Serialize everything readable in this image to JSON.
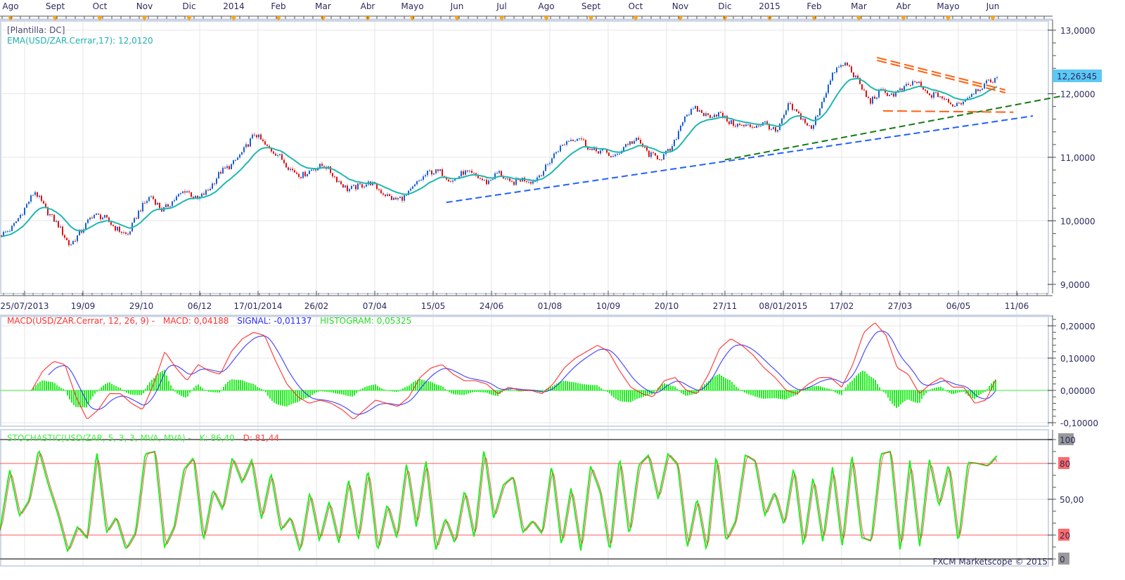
{
  "app": {
    "template_label": "[Plantilla: DC]",
    "footer": "FXCM Marketscope © 2015"
  },
  "top_axis": {
    "months": [
      "Ago",
      "Sept",
      "Oct",
      "Nov",
      "Dic",
      "2014",
      "Feb",
      "Mar",
      "Abr",
      "Mayo",
      "Jun",
      "Jul",
      "Ago",
      "Sept",
      "Oct",
      "Nov",
      "Dic",
      "2015",
      "Feb",
      "Mar",
      "Abr",
      "Mayo",
      "Jun"
    ]
  },
  "colors": {
    "up_candle": "#1a5fd0",
    "down_candle": "#e01010",
    "ema": "#20b8b0",
    "macd": "#ff2020",
    "signal": "#2020ff",
    "histogram": "#22ee22",
    "stoch_k": "#22ee22",
    "stoch_d": "#ff3030",
    "last_price_badge": "#5cc8f5",
    "trend_blue": "#2060ff",
    "trend_green": "#137a13",
    "trend_orange": "#ff6010"
  },
  "chart_data": [
    {
      "type": "candlestick",
      "symbol": "USD/ZAR",
      "indicator_label": "EMA(USD/ZAR.Cerrar,17):  12,0120",
      "last_price_label": "12,26345",
      "x_tick_labels": [
        "25/07/2013",
        "19/09",
        "29/10",
        "06/12",
        "17/01/2014",
        "26/02",
        "07/04",
        "15/05",
        "24/06",
        "01/08",
        "10/09",
        "20/10",
        "27/11",
        "08/01/2015",
        "17/02",
        "27/03",
        "06/05",
        "11/06"
      ],
      "y_tick_labels": [
        "13,0000",
        "12,0000",
        "11,0000",
        "10,0000",
        "9,0000"
      ],
      "ylim": [
        9.0,
        13.0
      ],
      "grid": true,
      "close_path": [
        9.77,
        9.88,
        10.16,
        10.47,
        10.16,
        9.94,
        9.61,
        9.83,
        10.1,
        10.05,
        9.88,
        9.77,
        10.16,
        10.4,
        10.16,
        10.33,
        10.49,
        10.33,
        10.49,
        10.77,
        10.88,
        11.1,
        11.38,
        11.16,
        11.04,
        10.82,
        10.71,
        10.82,
        10.88,
        10.66,
        10.49,
        10.55,
        10.6,
        10.44,
        10.33,
        10.38,
        10.6,
        10.77,
        10.77,
        10.62,
        10.77,
        10.71,
        10.6,
        10.77,
        10.58,
        10.66,
        10.62,
        10.82,
        11.1,
        11.27,
        11.32,
        11.1,
        11.1,
        10.99,
        11.21,
        11.27,
        11.04,
        10.99,
        11.15,
        11.65,
        11.76,
        11.65,
        11.69,
        11.54,
        11.49,
        11.49,
        11.54,
        11.38,
        11.82,
        11.65,
        11.43,
        11.93,
        12.37,
        12.48,
        12.2,
        11.87,
        12.04,
        11.98,
        12.09,
        12.2,
        11.98,
        11.98,
        11.82,
        11.87,
        12.04,
        12.15,
        12.26
      ],
      "ema_last": 12.012,
      "trendlines": [
        {
          "color": "blue",
          "style": "dashed",
          "from": [
            "2014-05-24",
            10.29
          ],
          "to": [
            "2015-06-21",
            11.65
          ]
        },
        {
          "color": "green",
          "style": "dashed",
          "from": [
            "2014-11-27",
            10.96
          ],
          "to": [
            "2015-07-08",
            11.96
          ]
        },
        {
          "color": "orange",
          "style": "double-dashed",
          "from": [
            "2015-03-12",
            12.57
          ],
          "to": [
            "2015-06-04",
            12.06
          ]
        },
        {
          "color": "orange",
          "style": "dashed",
          "from": [
            "2015-03-16",
            11.73
          ],
          "to": [
            "2015-06-09",
            11.71
          ]
        }
      ]
    },
    {
      "type": "line",
      "title": "MACD(USD/ZAR.Cerrar, 12, 26, 9) -",
      "macd_label": "MACD: 0,04188",
      "signal_label": "SIGNAL: -0,01137",
      "histogram_label": "HISTOGRAM: 0,05325",
      "y_tick_labels": [
        "0,20000",
        "0,10000",
        "0,00000",
        "-0,10000"
      ],
      "ylim": [
        -0.11,
        0.23
      ],
      "macd": [
        0.0,
        0.06,
        0.09,
        0.08,
        -0.02,
        -0.09,
        -0.06,
        -0.01,
        -0.01,
        -0.04,
        -0.06,
        0.02,
        0.12,
        0.07,
        0.03,
        0.08,
        0.06,
        0.05,
        0.12,
        0.16,
        0.18,
        0.17,
        0.09,
        0.02,
        -0.02,
        -0.04,
        -0.03,
        -0.04,
        -0.06,
        -0.09,
        -0.06,
        -0.03,
        -0.04,
        -0.05,
        -0.02,
        0.04,
        0.07,
        0.08,
        0.05,
        0.03,
        0.03,
        0.02,
        -0.01,
        0.01,
        0.0,
        0.0,
        -0.01,
        0.02,
        0.07,
        0.1,
        0.12,
        0.14,
        0.12,
        0.06,
        0.01,
        -0.01,
        -0.02,
        0.03,
        0.04,
        0.0,
        -0.01,
        0.05,
        0.13,
        0.16,
        0.14,
        0.11,
        0.07,
        0.04,
        0.0,
        -0.01,
        0.02,
        0.04,
        0.04,
        0.01,
        0.08,
        0.18,
        0.21,
        0.17,
        0.07,
        0.05,
        -0.01,
        0.02,
        0.04,
        0.01,
        0.01,
        -0.04,
        -0.03,
        0.04188
      ],
      "signal_last": -0.01137,
      "histogram_last": 0.05325
    },
    {
      "type": "line",
      "title": "STOCHASTIC(USD/ZAR, 5, 3, 3, MVA, MVA) -",
      "k_label": "K: 86,40",
      "d_label": "D: 81,44",
      "y_tick_labels": [
        "100",
        "80",
        "50,00",
        "20",
        "0"
      ],
      "ylim": [
        0,
        100
      ],
      "levels": [
        20,
        80
      ],
      "k": [
        24,
        75,
        36,
        49,
        92,
        62,
        37,
        6,
        27,
        17,
        90,
        22,
        35,
        8,
        22,
        88,
        90,
        10,
        27,
        75,
        85,
        15,
        58,
        41,
        85,
        64,
        83,
        33,
        72,
        24,
        35,
        6,
        56,
        15,
        48,
        13,
        67,
        15,
        76,
        6,
        46,
        17,
        80,
        27,
        83,
        7,
        34,
        13,
        58,
        17,
        92,
        34,
        62,
        69,
        22,
        32,
        21,
        79,
        11,
        60,
        7,
        78,
        56,
        6,
        86,
        19,
        79,
        87,
        50,
        88,
        79,
        9,
        51,
        6,
        88,
        15,
        32,
        87,
        82,
        36,
        56,
        28,
        77,
        10,
        69,
        14,
        77,
        10,
        88,
        18,
        15,
        88,
        90,
        6,
        83,
        10,
        84,
        44,
        80,
        13,
        81,
        80,
        78,
        86.4
      ],
      "d_last": 81.44
    }
  ]
}
